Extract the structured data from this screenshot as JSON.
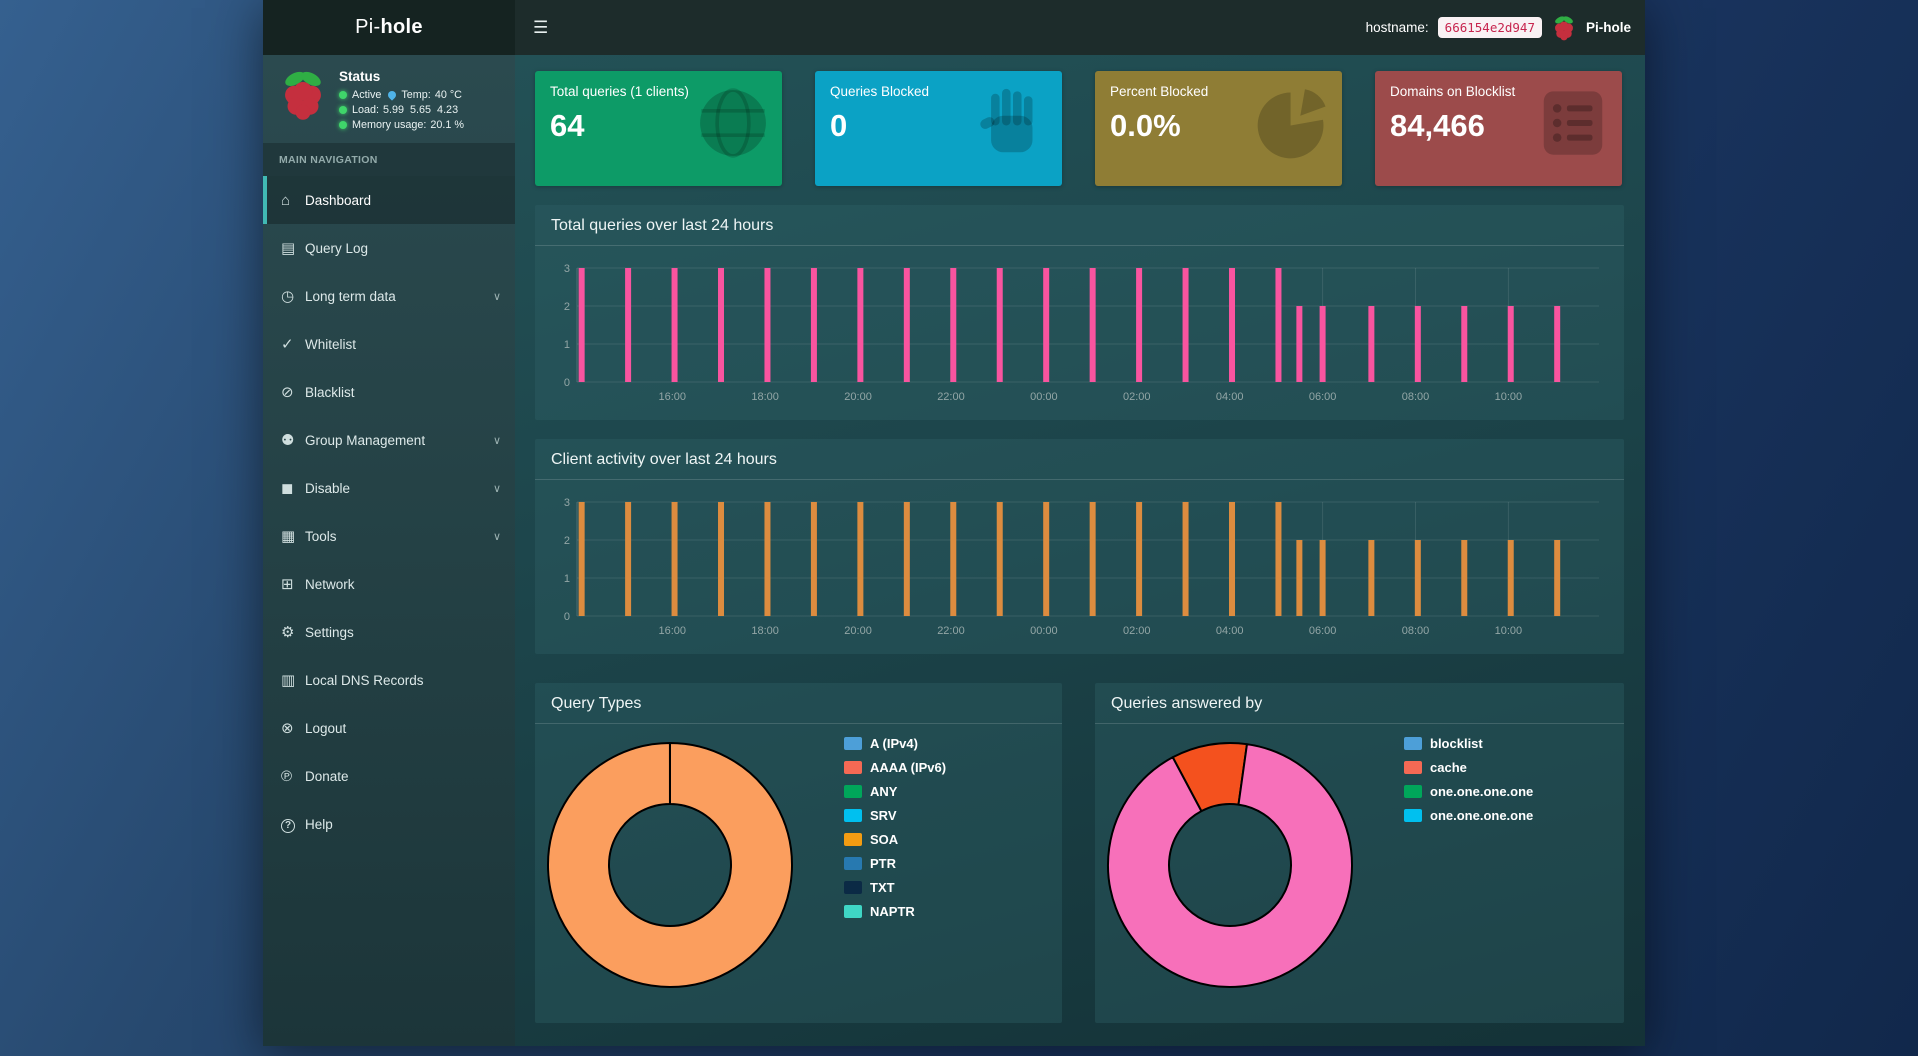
{
  "topbar": {
    "hamburger_glyph": "☰",
    "hostname_label": "hostname:",
    "hostname_value": "666154e2d947",
    "brand": "Pi-hole",
    "logo_prefix": "Pi-",
    "logo_bold": "hole"
  },
  "sidebar": {
    "status": {
      "title": "Status",
      "active_label": "Active",
      "temp_label": "Temp:",
      "temp_value": "40 °C",
      "load_label": "Load:",
      "load_values": "5.99  5.65  4.23",
      "memory_label": "Memory usage:",
      "memory_value": "20.1 %"
    },
    "section_label": "MAIN NAVIGATION",
    "chevron_glyph": "∨",
    "items": [
      {
        "label": "Dashboard",
        "icon": "home-icon",
        "glyph": "⌂",
        "active": true
      },
      {
        "label": "Query Log",
        "icon": "file-icon",
        "glyph": "▤"
      },
      {
        "label": "Long term data",
        "icon": "clock-icon",
        "glyph": "◷",
        "expandable": true
      },
      {
        "label": "Whitelist",
        "icon": "check-circle-icon",
        "glyph": "✓"
      },
      {
        "label": "Blacklist",
        "icon": "ban-icon",
        "glyph": "⊘"
      },
      {
        "label": "Group Management",
        "icon": "users-icon",
        "glyph": "⚉",
        "expandable": true
      },
      {
        "label": "Disable",
        "icon": "stop-icon",
        "glyph": "◼",
        "expandable": true
      },
      {
        "label": "Tools",
        "icon": "folder-icon",
        "glyph": "▦",
        "expandable": true
      },
      {
        "label": "Network",
        "icon": "network-icon",
        "glyph": "⊞"
      },
      {
        "label": "Settings",
        "icon": "gears-icon",
        "glyph": "⚙"
      },
      {
        "label": "Local DNS Records",
        "icon": "address-book-icon",
        "glyph": "▥"
      },
      {
        "label": "Logout",
        "icon": "logout-icon",
        "glyph": "⊗"
      },
      {
        "label": "Donate",
        "icon": "paypal-icon",
        "glyph": "℗"
      },
      {
        "label": "Help",
        "icon": "help-icon",
        "glyph": "?",
        "circled": true
      }
    ]
  },
  "cards": [
    {
      "title": "Total queries (1 clients)",
      "value": "64",
      "color": "#0d9b67",
      "icon": "globe-icon"
    },
    {
      "title": "Queries Blocked",
      "value": "0",
      "color": "#0ba2c5",
      "icon": "hand-icon"
    },
    {
      "title": "Percent Blocked",
      "value": "0.0%",
      "color": "#8f7d35",
      "icon": "pie-chart-icon"
    },
    {
      "title": "Domains on Blocklist",
      "value": "84,466",
      "color": "#9c4b4b",
      "icon": "list-icon"
    }
  ],
  "panels": {
    "total_queries_title": "Total queries over last 24 hours",
    "client_activity_title": "Client activity over last 24 hours",
    "query_types_title": "Query Types",
    "answered_by_title": "Queries answered by"
  },
  "chart_data": [
    {
      "id": "total-queries",
      "type": "bar",
      "title": "Total queries over last 24 hours",
      "color": "#f9549f",
      "x_unit": "hours since 14:00",
      "x_range": [
        0,
        22
      ],
      "ylim": [
        0,
        3
      ],
      "yticks": [
        0,
        1,
        2,
        3
      ],
      "x": [
        0.1,
        1.1,
        2.1,
        3.1,
        4.1,
        5.1,
        6.1,
        7.1,
        8.1,
        9.1,
        10.1,
        11.1,
        12.1,
        13.1,
        14.1,
        15.1,
        15.55,
        16.05,
        17.1,
        18.1,
        19.1,
        20.1,
        21.1
      ],
      "values": [
        3,
        3,
        3,
        3,
        3,
        3,
        3,
        3,
        3,
        3,
        3,
        3,
        3,
        3,
        3,
        3,
        2,
        2,
        2,
        2,
        2,
        2,
        2
      ],
      "tick_positions": [
        2.05,
        4.05,
        6.05,
        8.05,
        10.05,
        12.05,
        14.05,
        16.05,
        18.05,
        20.05
      ],
      "tick_labels": [
        "16:00",
        "18:00",
        "20:00",
        "22:00",
        "00:00",
        "02:00",
        "04:00",
        "06:00",
        "08:00",
        "10:00"
      ]
    },
    {
      "id": "client-activity",
      "type": "bar",
      "title": "Client activity over last 24 hours",
      "color": "#dd8c3f",
      "x_unit": "hours since 14:00",
      "x_range": [
        0,
        22
      ],
      "ylim": [
        0,
        3
      ],
      "yticks": [
        0,
        1,
        2,
        3
      ],
      "x": [
        0.1,
        1.1,
        2.1,
        3.1,
        4.1,
        5.1,
        6.1,
        7.1,
        8.1,
        9.1,
        10.1,
        11.1,
        12.1,
        13.1,
        14.1,
        15.1,
        15.55,
        16.05,
        17.1,
        18.1,
        19.1,
        20.1,
        21.1
      ],
      "values": [
        3,
        3,
        3,
        3,
        3,
        3,
        3,
        3,
        3,
        3,
        3,
        3,
        3,
        3,
        3,
        3,
        2,
        2,
        2,
        2,
        2,
        2,
        2
      ],
      "tick_positions": [
        2.05,
        4.05,
        6.05,
        8.05,
        10.05,
        12.05,
        14.05,
        16.05,
        18.05,
        20.05
      ],
      "tick_labels": [
        "16:00",
        "18:00",
        "20:00",
        "22:00",
        "00:00",
        "02:00",
        "04:00",
        "06:00",
        "08:00",
        "10:00"
      ]
    },
    {
      "id": "query-types",
      "type": "doughnut",
      "title": "Query Types",
      "hole_ratio": 0.5,
      "start_angle": 0,
      "border_color": "#000000",
      "slices": [
        {
          "label": "SOA",
          "value": 100,
          "color": "#fb9e5e"
        }
      ],
      "legend": [
        {
          "label": "A (IPv4)",
          "color": "#4d9fd8"
        },
        {
          "label": "AAAA (IPv6)",
          "color": "#f56954"
        },
        {
          "label": "ANY",
          "color": "#00a65a"
        },
        {
          "label": "SRV",
          "color": "#00c0ef"
        },
        {
          "label": "SOA",
          "color": "#f39c12"
        },
        {
          "label": "PTR",
          "color": "#2779b0"
        },
        {
          "label": "TXT",
          "color": "#0b2a45"
        },
        {
          "label": "NAPTR",
          "color": "#3fd6c5"
        }
      ],
      "legend_position": "right"
    },
    {
      "id": "answered-by",
      "type": "doughnut",
      "title": "Queries answered by",
      "hole_ratio": 0.5,
      "start_angle": -28,
      "border_color": "#000000",
      "slices": [
        {
          "label": "cache",
          "value": 10,
          "color": "#f4511e"
        },
        {
          "label": "one.one.one.one",
          "value": 90,
          "color": "#f770ba"
        }
      ],
      "legend": [
        {
          "label": "blocklist",
          "color": "#4d9fd8"
        },
        {
          "label": "cache",
          "color": "#f56954"
        },
        {
          "label": "one.one.one.one",
          "color": "#00a65a"
        },
        {
          "label": "one.one.one.one",
          "color": "#00c0ef"
        }
      ],
      "legend_position": "right"
    }
  ]
}
